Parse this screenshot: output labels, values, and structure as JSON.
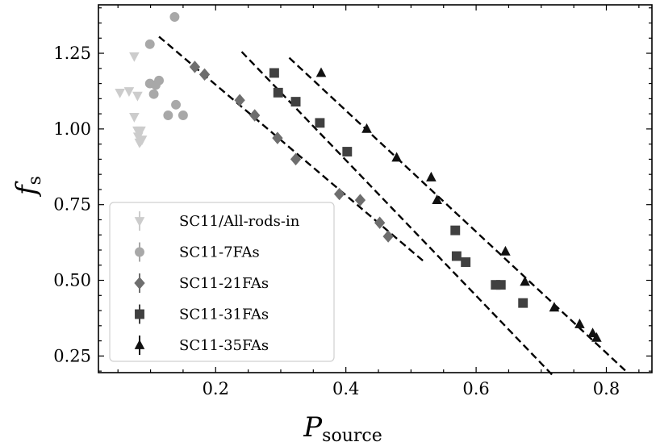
{
  "chart_data": {
    "type": "scatter",
    "xlabel": "P",
    "xlabel_sub": "source",
    "ylabel": "f",
    "ylabel_sub": "s",
    "xlim": [
      0.02,
      0.87
    ],
    "ylim": [
      0.195,
      1.41
    ],
    "xticks": [
      {
        "value": 0.2,
        "label": "0.2"
      },
      {
        "value": 0.4,
        "label": "0.4"
      },
      {
        "value": 0.6,
        "label": "0.6"
      },
      {
        "value": 0.8,
        "label": "0.8"
      }
    ],
    "yticks": [
      {
        "value": 0.25,
        "label": "0.25"
      },
      {
        "value": 0.5,
        "label": "0.50"
      },
      {
        "value": 0.75,
        "label": "0.75"
      },
      {
        "value": 1.0,
        "label": "1.00"
      },
      {
        "value": 1.25,
        "label": "1.25"
      }
    ],
    "grid": false,
    "legend_position": "lower-left",
    "series": [
      {
        "name": "SC11/All-rods-in",
        "marker": "triangle-down",
        "color": "#cccccc",
        "points": [
          [
            0.075,
            1.24
          ],
          [
            0.053,
            1.12
          ],
          [
            0.067,
            1.125
          ],
          [
            0.08,
            1.11
          ],
          [
            0.075,
            1.04
          ],
          [
            0.08,
            0.995
          ],
          [
            0.085,
            0.995
          ],
          [
            0.081,
            0.975
          ],
          [
            0.085,
            0.96
          ],
          [
            0.083,
            0.955
          ],
          [
            0.087,
            0.965
          ]
        ]
      },
      {
        "name": "SC11-7FAs",
        "marker": "circle",
        "color": "#a8a8a8",
        "points": [
          [
            0.137,
            1.37
          ],
          [
            0.099,
            1.28
          ],
          [
            0.099,
            1.15
          ],
          [
            0.113,
            1.16
          ],
          [
            0.108,
            1.145
          ],
          [
            0.105,
            1.115
          ],
          [
            0.139,
            1.08
          ],
          [
            0.127,
            1.045
          ],
          [
            0.15,
            1.045
          ]
        ]
      },
      {
        "name": "SC11-21FAs",
        "marker": "diamond",
        "color": "#6e6e6e",
        "points": [
          [
            0.168,
            1.205
          ],
          [
            0.183,
            1.18
          ],
          [
            0.237,
            1.095
          ],
          [
            0.26,
            1.045
          ],
          [
            0.295,
            0.97
          ],
          [
            0.323,
            0.9
          ],
          [
            0.39,
            0.785
          ],
          [
            0.422,
            0.765
          ],
          [
            0.452,
            0.69
          ],
          [
            0.465,
            0.645
          ]
        ]
      },
      {
        "name": "SC11-31FAs",
        "marker": "square",
        "color": "#404040",
        "points": [
          [
            0.29,
            1.185
          ],
          [
            0.296,
            1.12
          ],
          [
            0.323,
            1.09
          ],
          [
            0.36,
            1.02
          ],
          [
            0.402,
            0.925
          ],
          [
            0.568,
            0.665
          ],
          [
            0.57,
            0.58
          ],
          [
            0.584,
            0.56
          ],
          [
            0.63,
            0.485
          ],
          [
            0.638,
            0.485
          ],
          [
            0.672,
            0.425
          ]
        ]
      },
      {
        "name": "SC11-35FAs",
        "marker": "triangle-up",
        "color": "#111111",
        "points": [
          [
            0.362,
            1.185
          ],
          [
            0.432,
            1.0
          ],
          [
            0.478,
            0.905
          ],
          [
            0.531,
            0.84
          ],
          [
            0.54,
            0.765
          ],
          [
            0.645,
            0.595
          ],
          [
            0.675,
            0.495
          ],
          [
            0.72,
            0.41
          ],
          [
            0.759,
            0.355
          ],
          [
            0.779,
            0.325
          ],
          [
            0.785,
            0.31
          ]
        ]
      }
    ],
    "fit_lines": [
      {
        "series": "SC11-21FAs",
        "x": [
          0.113,
          0.521
        ],
        "y": [
          1.305,
          0.56
        ]
      },
      {
        "series": "SC11-31FAs",
        "x": [
          0.24,
          0.718
        ],
        "y": [
          1.255,
          0.185
        ]
      },
      {
        "series": "SC11-35FAs",
        "x": [
          0.313,
          0.83
        ],
        "y": [
          1.235,
          0.2
        ]
      }
    ]
  }
}
